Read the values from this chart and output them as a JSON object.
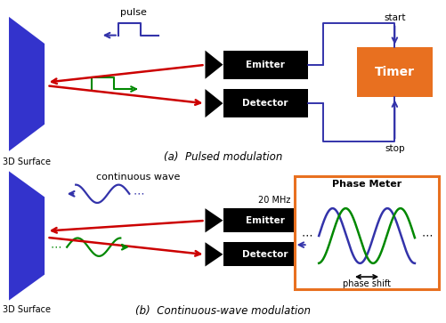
{
  "bg_color": "#ffffff",
  "blue_dark": "#3333aa",
  "blue_surface": "#3333cc",
  "black": "#000000",
  "orange": "#e87020",
  "green": "#008800",
  "red": "#cc0000",
  "title_a": "(a)  Pulsed modulation",
  "title_b": "(b)  Continuous-wave modulation",
  "surface_label": "3D Surface",
  "emitter_label": "Emitter",
  "detector_label": "Detector",
  "timer_label": "Timer",
  "pulse_label": "pulse",
  "start_label": "start",
  "stop_label": "stop",
  "cont_wave_label": "continuous wave",
  "mhz_label": "20 MHz",
  "phase_meter_label": "Phase Meter",
  "phase_shift_label": "phase shift"
}
